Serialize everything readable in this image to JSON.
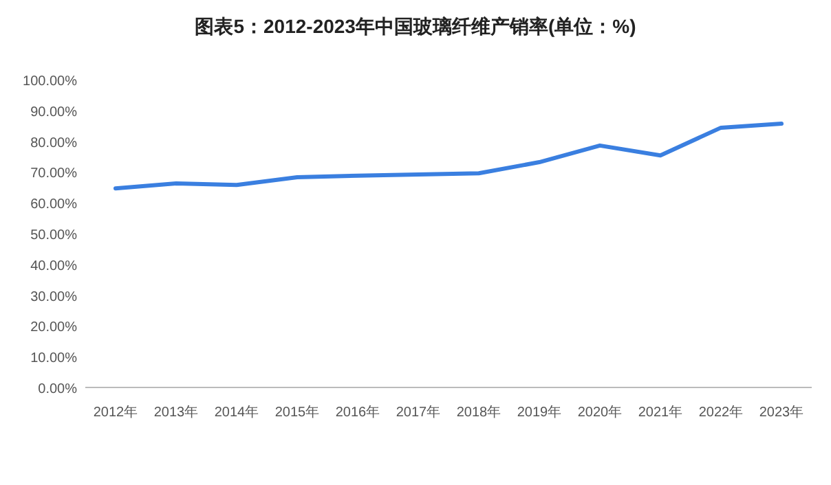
{
  "chart_data": {
    "type": "line",
    "title": "图表5：2012-2023年中国玻璃纤维产销率(单位：%)",
    "categories": [
      "2012年",
      "2013年",
      "2014年",
      "2015年",
      "2016年",
      "2017年",
      "2018年",
      "2019年",
      "2020年",
      "2021年",
      "2022年",
      "2023年"
    ],
    "series": [
      {
        "color": "#3a7fe0",
        "values": [
          64.7,
          66.3,
          65.8,
          68.3,
          68.8,
          69.2,
          69.6,
          73.2,
          78.6,
          75.4,
          84.4,
          85.7
        ]
      }
    ],
    "ylim": [
      0,
      100
    ],
    "yticks": [
      {
        "value": 0,
        "label": "0.00%"
      },
      {
        "value": 10,
        "label": "10.00%"
      },
      {
        "value": 20,
        "label": "20.00%"
      },
      {
        "value": 30,
        "label": "30.00%"
      },
      {
        "value": 40,
        "label": "40.00%"
      },
      {
        "value": 50,
        "label": "50.00%"
      },
      {
        "value": 60,
        "label": "60.00%"
      },
      {
        "value": 70,
        "label": "70.00%"
      },
      {
        "value": 80,
        "label": "80.00%"
      },
      {
        "value": 90,
        "label": "90.00%"
      },
      {
        "value": 100,
        "label": "100.00%"
      }
    ],
    "grid": false,
    "marker": "none",
    "line_style": "solid"
  }
}
